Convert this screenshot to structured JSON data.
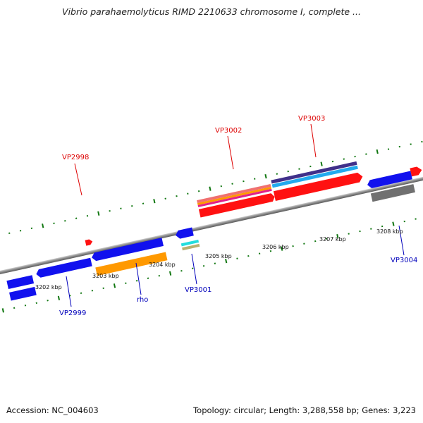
{
  "title": "Vibrio parahaemolyticus RIMD 2210633 chromosome I, complete ...",
  "footer": {
    "accession": "Accession: NC_004603",
    "summary": "Topology: circular; Length: 3,288,558 bp; Genes: 3,223"
  },
  "colors": {
    "forward_label": "#dd0000",
    "reverse_label": "#0000bb",
    "backbone": "#888888",
    "tick": "#117711",
    "blue": "#1111ee",
    "red": "#ff1111",
    "orange": "#ff9900",
    "gray": "#707070"
  },
  "ticks": {
    "labels": [
      "3202 kbp",
      "3203 kbp",
      "3204 kbp",
      "3205 kbp",
      "3206 kbp",
      "3207 kbp",
      "3208 kbp"
    ]
  },
  "labels": {
    "forward": [
      "VP2998",
      "VP3002",
      "VP3003"
    ],
    "reverse": [
      "VP2999",
      "rho",
      "VP3001",
      "VP3004"
    ]
  }
}
